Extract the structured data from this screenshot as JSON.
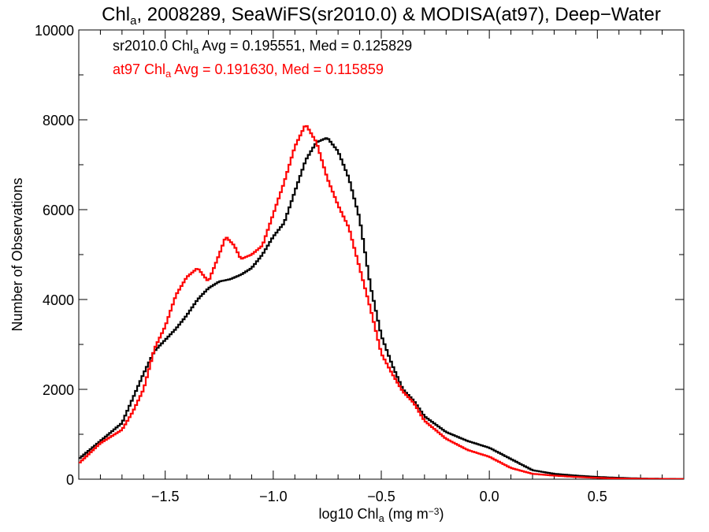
{
  "chart_data": {
    "type": "line",
    "title": {
      "pre": "Chl",
      "sub": "a",
      "post": ", 2008289, SeaWiFS(sr2010.0) & MODISA(at97), Deep−Water"
    },
    "xlabel": {
      "pre": "log10 Chl",
      "sub": "a",
      "post": " (mg m",
      "sup": "−3",
      "end": ")"
    },
    "ylabel": "Number of Observations",
    "xlim": [
      -1.9,
      0.9
    ],
    "ylim": [
      0,
      10000
    ],
    "x_ticks": [
      -1.5,
      -1.0,
      -0.5,
      0.0,
      0.5
    ],
    "x_tick_labels": [
      "−1.5",
      "−1.0",
      "−0.5",
      "0.0",
      "0.5"
    ],
    "y_ticks": [
      0,
      2000,
      4000,
      6000,
      8000,
      10000
    ],
    "y_tick_labels": [
      "0",
      "2000",
      "4000",
      "6000",
      "8000",
      "10000"
    ],
    "grid": false,
    "step": true,
    "series": [
      {
        "color": "#000000",
        "annotation": {
          "pre": "sr2010.0 Chl",
          "sub": "a",
          "post": " Avg = 0.195551, Med = 0.125829"
        },
        "points": [
          [
            -1.9,
            450
          ],
          [
            -1.8,
            850
          ],
          [
            -1.7,
            1250
          ],
          [
            -1.6,
            2350
          ],
          [
            -1.55,
            2850
          ],
          [
            -1.5,
            3100
          ],
          [
            -1.45,
            3350
          ],
          [
            -1.4,
            3650
          ],
          [
            -1.35,
            4000
          ],
          [
            -1.3,
            4250
          ],
          [
            -1.25,
            4400
          ],
          [
            -1.2,
            4450
          ],
          [
            -1.15,
            4550
          ],
          [
            -1.1,
            4700
          ],
          [
            -1.05,
            5000
          ],
          [
            -1.0,
            5400
          ],
          [
            -0.95,
            5700
          ],
          [
            -0.9,
            6400
          ],
          [
            -0.85,
            7100
          ],
          [
            -0.8,
            7500
          ],
          [
            -0.75,
            7600
          ],
          [
            -0.7,
            7300
          ],
          [
            -0.65,
            6700
          ],
          [
            -0.6,
            5800
          ],
          [
            -0.55,
            4300
          ],
          [
            -0.5,
            3200
          ],
          [
            -0.45,
            2550
          ],
          [
            -0.4,
            2000
          ],
          [
            -0.35,
            1750
          ],
          [
            -0.3,
            1400
          ],
          [
            -0.2,
            1050
          ],
          [
            -0.1,
            850
          ],
          [
            0.0,
            700
          ],
          [
            0.1,
            450
          ],
          [
            0.2,
            200
          ],
          [
            0.3,
            120
          ],
          [
            0.4,
            80
          ],
          [
            0.5,
            50
          ],
          [
            0.6,
            30
          ],
          [
            0.7,
            15
          ],
          [
            0.8,
            8
          ],
          [
            0.9,
            5
          ]
        ]
      },
      {
        "color": "#ff0000",
        "annotation": {
          "pre": "at97 Chl",
          "sub": "a",
          "post": " Avg = 0.191630, Med = 0.115859"
        },
        "points": [
          [
            -1.9,
            350
          ],
          [
            -1.8,
            800
          ],
          [
            -1.7,
            1100
          ],
          [
            -1.65,
            1500
          ],
          [
            -1.6,
            2000
          ],
          [
            -1.55,
            2900
          ],
          [
            -1.5,
            3400
          ],
          [
            -1.45,
            4100
          ],
          [
            -1.4,
            4500
          ],
          [
            -1.35,
            4700
          ],
          [
            -1.3,
            4400
          ],
          [
            -1.25,
            5000
          ],
          [
            -1.22,
            5400
          ],
          [
            -1.18,
            5200
          ],
          [
            -1.15,
            4900
          ],
          [
            -1.1,
            5000
          ],
          [
            -1.05,
            5200
          ],
          [
            -1.0,
            5900
          ],
          [
            -0.95,
            6600
          ],
          [
            -0.9,
            7400
          ],
          [
            -0.85,
            7900
          ],
          [
            -0.8,
            7500
          ],
          [
            -0.75,
            6700
          ],
          [
            -0.7,
            6100
          ],
          [
            -0.65,
            5600
          ],
          [
            -0.6,
            4700
          ],
          [
            -0.55,
            3800
          ],
          [
            -0.5,
            2800
          ],
          [
            -0.45,
            2350
          ],
          [
            -0.4,
            1950
          ],
          [
            -0.35,
            1700
          ],
          [
            -0.3,
            1300
          ],
          [
            -0.2,
            900
          ],
          [
            -0.1,
            650
          ],
          [
            0.0,
            500
          ],
          [
            0.1,
            250
          ],
          [
            0.2,
            120
          ],
          [
            0.3,
            80
          ],
          [
            0.4,
            50
          ],
          [
            0.5,
            30
          ],
          [
            0.6,
            15
          ],
          [
            0.7,
            8
          ],
          [
            0.8,
            5
          ],
          [
            0.9,
            3
          ]
        ]
      }
    ]
  }
}
